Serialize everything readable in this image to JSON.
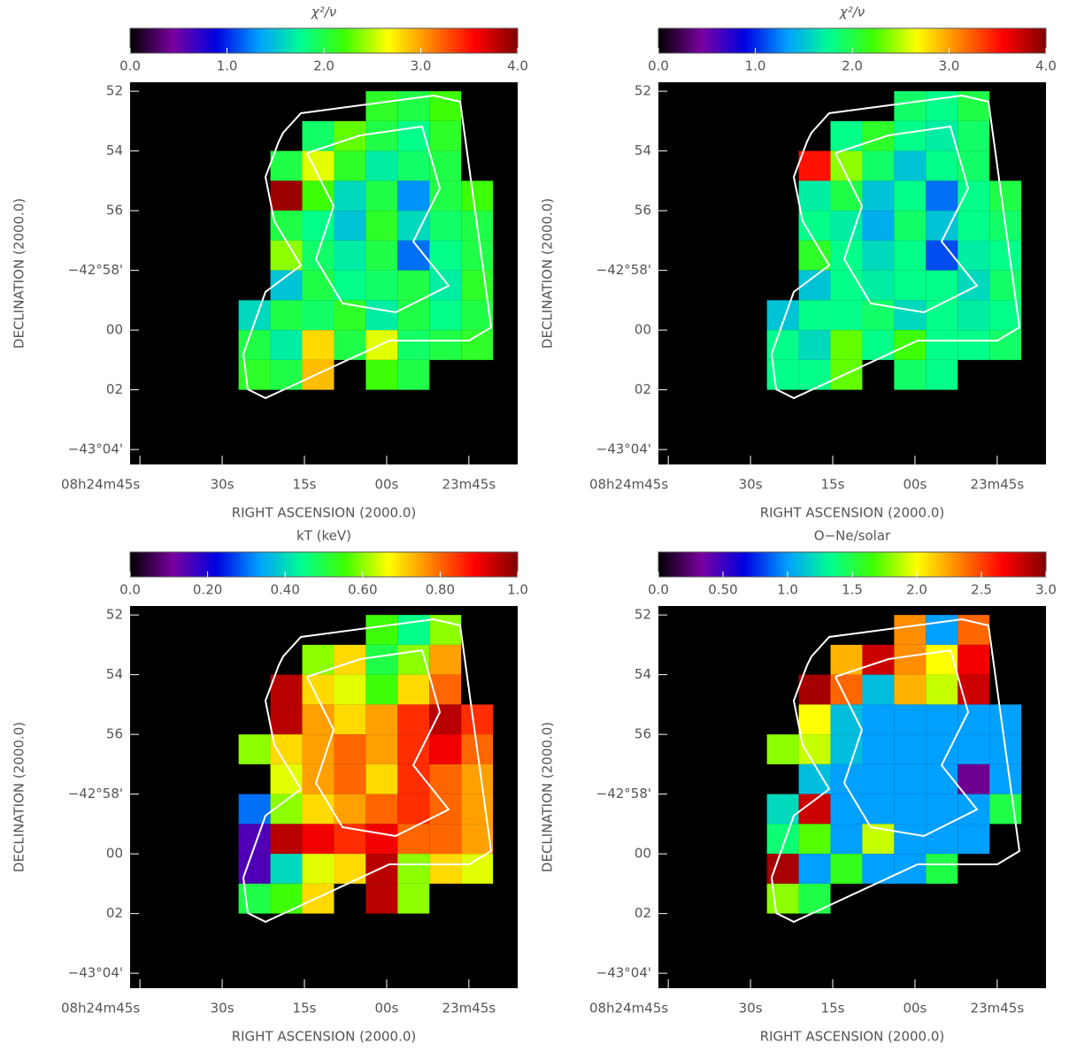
{
  "chart_data": [
    {
      "type": "heatmap",
      "title": "χ²/ν",
      "xlabel": "RIGHT ASCENSION (2000.0)",
      "ylabel": "DECLINATION (2000.0)",
      "xlim": [
        46.8,
        -23.9
      ],
      "xticks": [
        {
          "value": 45,
          "label": "08h24m45s"
        },
        {
          "value": 30,
          "label": "30s"
        },
        {
          "value": 15,
          "label": "15s"
        },
        {
          "value": 0,
          "label": "00s"
        },
        {
          "value": -15,
          "label": "23m45s"
        }
      ],
      "ylim": [
        64.5,
        51.7
      ],
      "yticks": [
        52,
        54,
        56,
        {
          "value": 58,
          "label": "−42°58'"
        },
        {
          "value": 60,
          "label": "00"
        },
        {
          "value": 62,
          "label": "02"
        },
        {
          "value": 64,
          "label": "−43°04'"
        }
      ],
      "x_edges": [
        27,
        21.2,
        15.4,
        9.6,
        3.8,
        -2,
        -7.8,
        -13.6,
        -19.4
      ],
      "y_edges": [
        52,
        53,
        54,
        55,
        56,
        57,
        58,
        59,
        60,
        61,
        62
      ],
      "colormap": [
        "#000000",
        "#7a00a0",
        "#0000e0",
        "#00a0ff",
        "#00ff90",
        "#40ff00",
        "#ffff00",
        "#ff8000",
        "#ff0000",
        "#800000"
      ],
      "clim": [
        0,
        4
      ],
      "cticks": [
        {
          "value": 0,
          "label": "0.0"
        },
        {
          "value": 1,
          "label": "1.0"
        },
        {
          "value": 2,
          "label": "2.0"
        },
        {
          "value": 3,
          "label": "3.0"
        },
        {
          "value": 4,
          "label": "4.0"
        }
      ],
      "values": [
        [
          null,
          null,
          null,
          null,
          2.1,
          2.0,
          2.2,
          null
        ],
        [
          null,
          null,
          1.9,
          2.3,
          2.0,
          1.8,
          2.1,
          null
        ],
        [
          null,
          2.0,
          2.6,
          2.1,
          1.7,
          1.9,
          2.0,
          null
        ],
        [
          null,
          3.9,
          2.2,
          1.6,
          2.0,
          1.3,
          2.0,
          2.2
        ],
        [
          null,
          2.0,
          1.8,
          1.5,
          2.1,
          1.6,
          1.9,
          2.0
        ],
        [
          null,
          2.4,
          1.9,
          1.7,
          2.0,
          1.2,
          1.8,
          2.0
        ],
        [
          null,
          1.5,
          2.0,
          1.8,
          1.9,
          2.0,
          1.7,
          2.1
        ],
        [
          1.6,
          2.0,
          1.9,
          2.1,
          1.7,
          2.0,
          1.8,
          2.0
        ],
        [
          2.0,
          1.7,
          2.8,
          2.0,
          2.6,
          1.9,
          2.0,
          2.1
        ],
        [
          2.1,
          2.0,
          2.9,
          null,
          2.2,
          2.0,
          null,
          null
        ]
      ]
    },
    {
      "type": "heatmap",
      "title": "χ²/ν",
      "xlabel": "RIGHT ASCENSION (2000.0)",
      "ylabel": "DECLINATION (2000.0)",
      "xlim": [
        46.8,
        -23.9
      ],
      "xticks": [
        {
          "value": 45,
          "label": "08h24m45s"
        },
        {
          "value": 30,
          "label": "30s"
        },
        {
          "value": 15,
          "label": "15s"
        },
        {
          "value": 0,
          "label": "00s"
        },
        {
          "value": -15,
          "label": "23m45s"
        }
      ],
      "ylim": [
        64.5,
        51.7
      ],
      "yticks": [
        52,
        54,
        56,
        {
          "value": 58,
          "label": "−42°58'"
        },
        {
          "value": 60,
          "label": "00"
        },
        {
          "value": 62,
          "label": "02"
        },
        {
          "value": 64,
          "label": "−43°04'"
        }
      ],
      "x_edges": [
        27,
        21.2,
        15.4,
        9.6,
        3.8,
        -2,
        -7.8,
        -13.6,
        -19.4
      ],
      "y_edges": [
        52,
        53,
        54,
        55,
        56,
        57,
        58,
        59,
        60,
        61,
        62
      ],
      "colormap": [
        "#000000",
        "#7a00a0",
        "#0000e0",
        "#00a0ff",
        "#00ff90",
        "#40ff00",
        "#ffff00",
        "#ff8000",
        "#ff0000",
        "#800000"
      ],
      "clim": [
        0,
        4
      ],
      "cticks": [
        {
          "value": 0,
          "label": "0.0"
        },
        {
          "value": 1,
          "label": "1.0"
        },
        {
          "value": 2,
          "label": "2.0"
        },
        {
          "value": 3,
          "label": "3.0"
        },
        {
          "value": 4,
          "label": "4.0"
        }
      ],
      "values": [
        [
          null,
          null,
          null,
          null,
          1.9,
          1.8,
          2.0,
          null
        ],
        [
          null,
          null,
          1.8,
          2.1,
          1.8,
          1.7,
          1.9,
          null
        ],
        [
          null,
          3.5,
          2.4,
          1.9,
          1.5,
          1.8,
          1.9,
          null
        ],
        [
          null,
          1.7,
          2.0,
          1.5,
          1.8,
          1.2,
          1.8,
          2.0
        ],
        [
          null,
          1.8,
          1.7,
          1.4,
          1.9,
          1.5,
          1.8,
          1.9
        ],
        [
          null,
          2.1,
          1.8,
          1.6,
          1.8,
          1.1,
          1.7,
          1.8
        ],
        [
          null,
          1.5,
          1.8,
          1.7,
          1.8,
          1.8,
          1.6,
          1.9
        ],
        [
          1.5,
          1.8,
          1.8,
          1.9,
          1.6,
          1.8,
          1.7,
          1.8
        ],
        [
          1.8,
          1.6,
          2.3,
          1.8,
          2.2,
          1.8,
          1.8,
          1.9
        ],
        [
          1.8,
          1.8,
          2.3,
          null,
          1.9,
          1.8,
          null,
          null
        ]
      ]
    },
    {
      "type": "heatmap",
      "title": "kT (keV)",
      "xlabel": "RIGHT ASCENSION (2000.0)",
      "ylabel": "DECLINATION (2000.0)",
      "xlim": [
        46.8,
        -23.9
      ],
      "xticks": [
        {
          "value": 45,
          "label": "08h24m45s"
        },
        {
          "value": 30,
          "label": "30s"
        },
        {
          "value": 15,
          "label": "15s"
        },
        {
          "value": 0,
          "label": "00s"
        },
        {
          "value": -15,
          "label": "23m45s"
        }
      ],
      "ylim": [
        64.5,
        51.7
      ],
      "yticks": [
        52,
        54,
        56,
        {
          "value": 58,
          "label": "−42°58'"
        },
        {
          "value": 60,
          "label": "00"
        },
        {
          "value": 62,
          "label": "02"
        },
        {
          "value": 64,
          "label": "−43°04'"
        }
      ],
      "x_edges": [
        27,
        21.2,
        15.4,
        9.6,
        3.8,
        -2,
        -7.8,
        -13.6,
        -19.4
      ],
      "y_edges": [
        52,
        53,
        54,
        55,
        56,
        57,
        58,
        59,
        60,
        61,
        62
      ],
      "colormap": [
        "#000000",
        "#7a00a0",
        "#0000e0",
        "#00a0ff",
        "#00ff90",
        "#40ff00",
        "#ffff00",
        "#ff8000",
        "#ff0000",
        "#800000"
      ],
      "clim": [
        0,
        1
      ],
      "cticks": [
        {
          "value": 0,
          "label": "0.0"
        },
        {
          "value": 0.2,
          "label": "0.20"
        },
        {
          "value": 0.4,
          "label": "0.40"
        },
        {
          "value": 0.6,
          "label": "0.60"
        },
        {
          "value": 0.8,
          "label": "0.80"
        },
        {
          "value": 1,
          "label": "1.0"
        }
      ],
      "values": [
        [
          null,
          null,
          null,
          null,
          0.55,
          0.45,
          0.6,
          null
        ],
        [
          null,
          null,
          0.6,
          0.7,
          0.5,
          0.6,
          0.75,
          null
        ],
        [
          null,
          0.95,
          0.7,
          0.65,
          0.55,
          0.7,
          0.8,
          null
        ],
        [
          null,
          0.95,
          0.75,
          0.7,
          0.75,
          0.85,
          0.95,
          0.85
        ],
        [
          0.6,
          0.7,
          0.75,
          0.8,
          0.75,
          0.85,
          0.9,
          0.8
        ],
        [
          null,
          0.65,
          0.75,
          0.8,
          0.7,
          0.85,
          0.8,
          0.75
        ],
        [
          0.3,
          0.6,
          0.7,
          0.75,
          0.8,
          0.85,
          0.8,
          0.75
        ],
        [
          0.15,
          0.95,
          0.9,
          0.85,
          0.9,
          0.8,
          0.8,
          0.75
        ],
        [
          0.15,
          0.4,
          0.65,
          0.7,
          0.95,
          0.6,
          0.7,
          0.65
        ],
        [
          0.5,
          0.55,
          0.7,
          null,
          0.95,
          0.6,
          null,
          null
        ]
      ]
    },
    {
      "type": "heatmap",
      "title": "O−Ne/solar",
      "xlabel": "RIGHT ASCENSION (2000.0)",
      "ylabel": "DECLINATION (2000.0)",
      "xlim": [
        46.8,
        -23.9
      ],
      "xticks": [
        {
          "value": 45,
          "label": "08h24m45s"
        },
        {
          "value": 30,
          "label": "30s"
        },
        {
          "value": 15,
          "label": "15s"
        },
        {
          "value": 0,
          "label": "00s"
        },
        {
          "value": -15,
          "label": "23m45s"
        }
      ],
      "ylim": [
        64.5,
        51.7
      ],
      "yticks": [
        52,
        54,
        56,
        {
          "value": 58,
          "label": "−42°58'"
        },
        {
          "value": 60,
          "label": "00"
        },
        {
          "value": 62,
          "label": "02"
        },
        {
          "value": 64,
          "label": "−43°04'"
        }
      ],
      "x_edges": [
        27,
        21.2,
        15.4,
        9.6,
        3.8,
        -2,
        -7.8,
        -13.6,
        -19.4
      ],
      "y_edges": [
        52,
        53,
        54,
        55,
        56,
        57,
        58,
        59,
        60,
        61,
        62
      ],
      "colormap": [
        "#000000",
        "#7a00a0",
        "#0000e0",
        "#00a0ff",
        "#00ff90",
        "#40ff00",
        "#ffff00",
        "#ff8000",
        "#ff0000",
        "#800000"
      ],
      "clim": [
        0,
        3
      ],
      "cticks": [
        {
          "value": 0,
          "label": "0.0"
        },
        {
          "value": 0.5,
          "label": "0.50"
        },
        {
          "value": 1,
          "label": "1.0"
        },
        1.5,
        {
          "value": 2,
          "label": "2.0"
        },
        2.5,
        {
          "value": 3,
          "label": "3.0"
        }
      ],
      "values": [
        [
          null,
          null,
          null,
          null,
          2.3,
          1.0,
          2.4,
          null
        ],
        [
          null,
          null,
          2.2,
          2.8,
          2.3,
          2.0,
          2.7,
          null
        ],
        [
          null,
          2.9,
          2.4,
          1.1,
          2.2,
          1.9,
          2.8,
          null
        ],
        [
          null,
          2.0,
          1.1,
          1.0,
          1.0,
          1.0,
          1.0,
          1.0
        ],
        [
          1.8,
          1.9,
          1.1,
          1.0,
          1.0,
          1.0,
          1.0,
          1.0
        ],
        [
          null,
          1.1,
          1.0,
          1.0,
          1.0,
          1.0,
          0.3,
          1.0
        ],
        [
          1.2,
          2.8,
          1.0,
          1.0,
          1.0,
          1.0,
          1.0,
          1.5
        ],
        [
          1.4,
          1.7,
          1.0,
          1.9,
          1.0,
          1.0,
          1.0,
          null
        ],
        [
          2.9,
          1.0,
          1.6,
          1.0,
          1.0,
          1.5,
          null,
          null
        ],
        [
          1.8,
          1.5,
          null,
          null,
          null,
          null,
          null,
          null
        ]
      ]
    }
  ]
}
